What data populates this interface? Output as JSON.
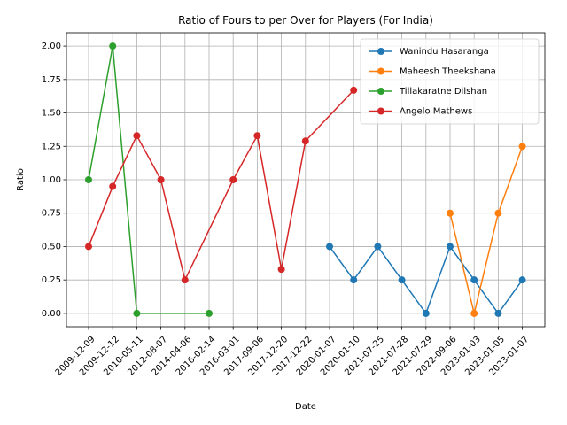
{
  "chart_data": {
    "type": "line",
    "title": "Ratio of Fours to per Over for Players (For India)",
    "xlabel": "Date",
    "ylabel": "Ratio",
    "ylim": [
      -0.1,
      2.1
    ],
    "yticks": [
      "0.00",
      "0.25",
      "0.50",
      "0.75",
      "1.00",
      "1.25",
      "1.50",
      "1.75",
      "2.00"
    ],
    "grid": true,
    "legend_position": "top-right",
    "categories": [
      "2009-12-09",
      "2009-12-12",
      "2010-05-11",
      "2012-08-07",
      "2014-04-06",
      "2016-02-14",
      "2016-03-01",
      "2017-09-06",
      "2017-12-20",
      "2017-12-22",
      "2020-01-07",
      "2020-01-10",
      "2021-07-25",
      "2021-07-28",
      "2021-07-29",
      "2022-09-06",
      "2023-01-03",
      "2023-01-05",
      "2023-01-07"
    ],
    "series": [
      {
        "name": "Wanindu Hasaranga",
        "color": "#1f77b4",
        "points": [
          [
            "2020-01-07",
            0.5
          ],
          [
            "2020-01-10",
            0.25
          ],
          [
            "2021-07-25",
            0.5
          ],
          [
            "2021-07-28",
            0.25
          ],
          [
            "2021-07-29",
            0.0
          ],
          [
            "2022-09-06",
            0.5
          ],
          [
            "2023-01-03",
            0.25
          ],
          [
            "2023-01-05",
            0.0
          ],
          [
            "2023-01-07",
            0.25
          ]
        ]
      },
      {
        "name": "Maheesh Theekshana",
        "color": "#ff7f0e",
        "points": [
          [
            "2022-09-06",
            0.75
          ],
          [
            "2023-01-03",
            0.0
          ],
          [
            "2023-01-05",
            0.75
          ],
          [
            "2023-01-07",
            1.25
          ]
        ]
      },
      {
        "name": "Tillakaratne Dilshan",
        "color": "#2ca02c",
        "points": [
          [
            "2009-12-09",
            1.0
          ],
          [
            "2009-12-12",
            2.0
          ],
          [
            "2010-05-11",
            0.0
          ],
          [
            "2016-02-14",
            0.0
          ]
        ]
      },
      {
        "name": "Angelo Mathews",
        "color": "#d62728",
        "points": [
          [
            "2009-12-09",
            0.5
          ],
          [
            "2009-12-12",
            0.95
          ],
          [
            "2010-05-11",
            1.33
          ],
          [
            "2012-08-07",
            1.0
          ],
          [
            "2014-04-06",
            0.25
          ],
          [
            "2016-03-01",
            1.0
          ],
          [
            "2017-09-06",
            1.33
          ],
          [
            "2017-12-20",
            0.33
          ],
          [
            "2017-12-22",
            1.29
          ],
          [
            "2020-01-10",
            1.67
          ]
        ]
      }
    ]
  }
}
